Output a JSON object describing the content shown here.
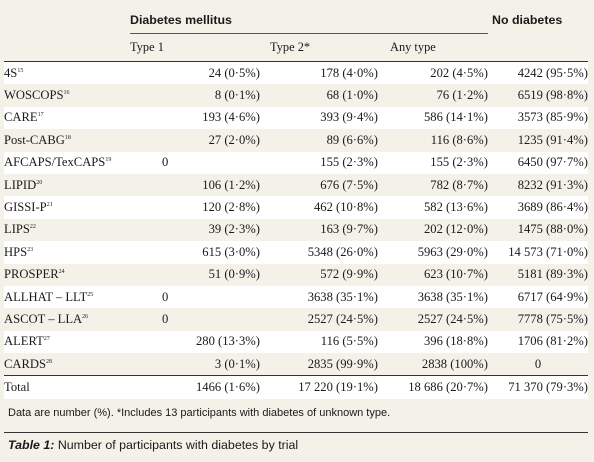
{
  "header": {
    "group_dm": "Diabetes mellitus",
    "group_no": "No diabetes",
    "col_type1": "Type 1",
    "col_type2": "Type 2*",
    "col_any": "Any type"
  },
  "rows": [
    {
      "trial": "4S",
      "ref": "15",
      "t1": "24 (0·5%)",
      "t2": "178 (4·0%)",
      "any": "202 (4·5%)",
      "none": "4242 (95·5%)"
    },
    {
      "trial": "WOSCOPS",
      "ref": "16",
      "t1": "8 (0·1%)",
      "t2": "68 (1·0%)",
      "any": "76 (1·2%)",
      "none": "6519 (98·8%)"
    },
    {
      "trial": "CARE",
      "ref": "17",
      "t1": "193 (4·6%)",
      "t2": "393 (9·4%)",
      "any": "586 (14·1%)",
      "none": "3573 (85·9%)"
    },
    {
      "trial": "Post-CABG",
      "ref": "18",
      "t1": "27 (2·0%)",
      "t2": "89 (6·6%)",
      "any": "116 (8·6%)",
      "none": "1235 (91·4%)"
    },
    {
      "trial": "AFCAPS/TexCAPS",
      "ref": "19",
      "t1": "0",
      "t2": "155 (2·3%)",
      "any": "155 (2·3%)",
      "none": "6450 (97·7%)"
    },
    {
      "trial": "LIPID",
      "ref": "20",
      "t1": "106 (1·2%)",
      "t2": "676 (7·5%)",
      "any": "782 (8·7%)",
      "none": "8232 (91·3%)"
    },
    {
      "trial": "GISSI-P",
      "ref": "21",
      "t1": "120 (2·8%)",
      "t2": "462 (10·8%)",
      "any": "582 (13·6%)",
      "none": "3689 (86·4%)"
    },
    {
      "trial": "LIPS",
      "ref": "22",
      "t1": "39 (2·3%)",
      "t2": "163 (9·7%)",
      "any": "202 (12·0%)",
      "none": "1475 (88·0%)"
    },
    {
      "trial": "HPS",
      "ref": "23",
      "t1": "615 (3·0%)",
      "t2": "5348 (26·0%)",
      "any": "5963 (29·0%)",
      "none": "14 573 (71·0%)"
    },
    {
      "trial": "PROSPER",
      "ref": "24",
      "t1": "51 (0·9%)",
      "t2": "572 (9·9%)",
      "any": "623 (10·7%)",
      "none": "5181 (89·3%)"
    },
    {
      "trial": "ALLHAT – LLT",
      "ref": "25",
      "t1": "0",
      "t2": "3638 (35·1%)",
      "any": "3638 (35·1%)",
      "none": "6717 (64·9%)"
    },
    {
      "trial": "ASCOT – LLA",
      "ref": "26",
      "t1": "0",
      "t2": "2527 (24·5%)",
      "any": "2527 (24·5%)",
      "none": "7778 (75·5%)"
    },
    {
      "trial": "ALERT",
      "ref": "27",
      "t1": "280 (13·3%)",
      "t2": "116 (5·5%)",
      "any": "396 (18·8%)",
      "none": "1706 (81·2%)"
    },
    {
      "trial": "CARDS",
      "ref": "28",
      "t1": "3 (0·1%)",
      "t2": "2835 (99·9%)",
      "any": "2838 (100%)",
      "none": "0"
    },
    {
      "trial": "Total",
      "ref": "",
      "t1": "1466 (1·6%)",
      "t2": "17 220 (19·1%)",
      "any": "18 686 (20·7%)",
      "none": "71 370 (79·3%)"
    }
  ],
  "note": "Data are number (%). *Includes 13 participants with diabetes of unknown type.",
  "caption_label": "Table 1:",
  "caption_text": " Number of participants with diabetes by trial"
}
